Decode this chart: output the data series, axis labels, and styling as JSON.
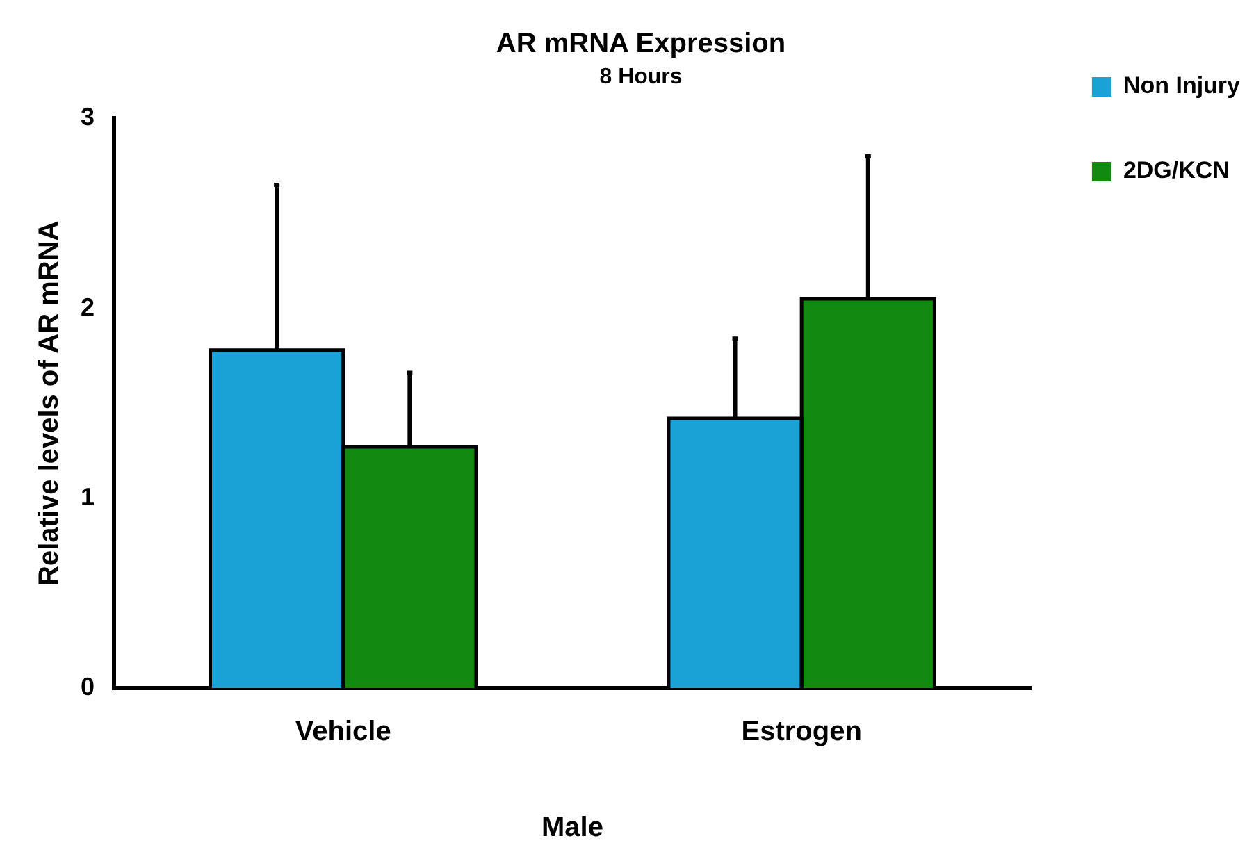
{
  "chart_data": {
    "type": "bar",
    "title": "AR mRNA Expression",
    "subtitle": "8 Hours",
    "xlabel": "Male",
    "ylabel": "Relative levels of AR mRNA",
    "categories": [
      "Vehicle",
      "Estrogen"
    ],
    "series": [
      {
        "name": "Non Injury",
        "color": "#1aa1d6",
        "values": [
          1.78,
          1.42
        ],
        "errors": [
          [
            1.78,
            2.65
          ],
          [
            1.42,
            1.84
          ]
        ]
      },
      {
        "name": "2DG/KCN",
        "color": "#128a12",
        "values": [
          1.27,
          2.05
        ],
        "errors": [
          [
            1.27,
            1.66
          ],
          [
            2.05,
            2.8
          ]
        ]
      }
    ],
    "ylim": [
      0,
      3
    ],
    "yticks": [
      0,
      1,
      2,
      3
    ],
    "grid": false,
    "legend": "top right"
  }
}
